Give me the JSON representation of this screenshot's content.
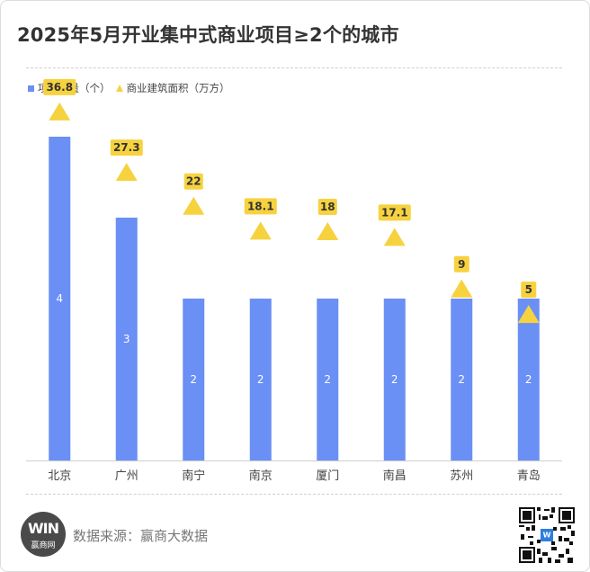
{
  "title": "2025年5月开业集中式商业项目≥2个的城市",
  "legend": {
    "bar_label": "项目数量（个）",
    "triangle_label": "商业建筑面积（万方）"
  },
  "source": {
    "text": "数据来源：赢商大数据",
    "logo_main": "WIN",
    "logo_sub": "赢商网"
  },
  "colors": {
    "bar": "#6a8ff5",
    "triangle": "#f7d23f",
    "label_box": "#f7d23f"
  },
  "chart_data": {
    "type": "bar",
    "categories": [
      "北京",
      "广州",
      "南宁",
      "南京",
      "厦门",
      "南昌",
      "苏州",
      "青岛"
    ],
    "series": [
      {
        "name": "项目数量（个）",
        "type": "bar",
        "values": [
          4,
          3,
          2,
          2,
          2,
          2,
          2,
          2
        ]
      },
      {
        "name": "商业建筑面积（万方）",
        "type": "scatter",
        "marker": "triangle",
        "values": [
          36.8,
          27.3,
          22,
          18.1,
          18,
          17.1,
          9,
          5
        ]
      }
    ],
    "bar_ylim": [
      0,
      4.8
    ],
    "area_ylim": [
      -18,
      43
    ],
    "grid": false,
    "legend_position": "top-left"
  }
}
